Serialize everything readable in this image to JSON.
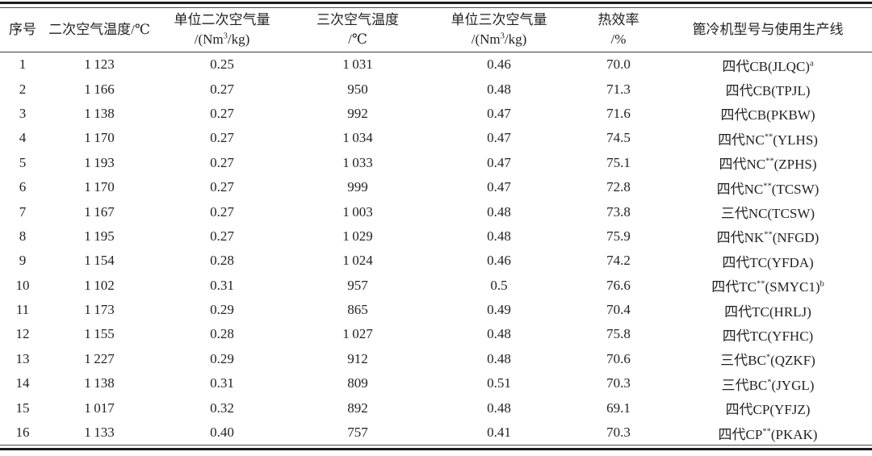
{
  "table": {
    "columns": [
      {
        "id": "index",
        "line1": "序号",
        "line2": ""
      },
      {
        "id": "secondary-air-temp",
        "line1": "二次空气温度/℃",
        "line2": ""
      },
      {
        "id": "unit-secondary-air",
        "line1": "单位二次空气量",
        "line2": "/(Nm^{3}/kg)"
      },
      {
        "id": "tertiary-air-temp",
        "line1": "三次空气温度",
        "line2": "/℃"
      },
      {
        "id": "unit-tertiary-air",
        "line1": "单位三次空气量",
        "line2": "/(Nm^{3}/kg)"
      },
      {
        "id": "thermal-efficiency",
        "line1": "热效率",
        "line2": "/%"
      },
      {
        "id": "cooler-model",
        "line1": "篦冷机型号与使用生产线",
        "line2": ""
      }
    ],
    "rows": [
      [
        "1",
        "1 123",
        "0.25",
        "1 031",
        "0.46",
        "70.0",
        "四代CB(JLQC)^{a}"
      ],
      [
        "2",
        "1 166",
        "0.27",
        "950",
        "0.48",
        "71.3",
        "四代CB(TPJL)"
      ],
      [
        "3",
        "1 138",
        "0.27",
        "992",
        "0.47",
        "71.6",
        "四代CB(PKBW)"
      ],
      [
        "4",
        "1 170",
        "0.27",
        "1 034",
        "0.47",
        "74.5",
        "四代NC^{**}(YLHS)"
      ],
      [
        "5",
        "1 193",
        "0.27",
        "1 033",
        "0.47",
        "75.1",
        "四代NC^{**}(ZPHS)"
      ],
      [
        "6",
        "1 170",
        "0.27",
        "999",
        "0.47",
        "72.8",
        "四代NC^{**}(TCSW)"
      ],
      [
        "7",
        "1 167",
        "0.27",
        "1 003",
        "0.48",
        "73.8",
        "三代NC(TCSW)"
      ],
      [
        "8",
        "1 195",
        "0.27",
        "1 029",
        "0.48",
        "75.9",
        "四代NK^{**}(NFGD)"
      ],
      [
        "9",
        "1 154",
        "0.28",
        "1 024",
        "0.46",
        "74.2",
        "四代TC(YFDA)"
      ],
      [
        "10",
        "1 102",
        "0.31",
        "957",
        "0.5",
        "76.6",
        "四代TC^{**}(SMYC1)^{b}"
      ],
      [
        "11",
        "1 173",
        "0.29",
        "865",
        "0.49",
        "70.4",
        "四代TC(HRLJ)"
      ],
      [
        "12",
        "1 155",
        "0.28",
        "1 027",
        "0.48",
        "75.8",
        "四代TC(YFHC)"
      ],
      [
        "13",
        "1 227",
        "0.29",
        "912",
        "0.48",
        "70.6",
        "三代BC^{*}(QZKF)"
      ],
      [
        "14",
        "1 138",
        "0.31",
        "809",
        "0.51",
        "70.3",
        "三代BC^{*}(JYGL)"
      ],
      [
        "15",
        "1 017",
        "0.32",
        "892",
        "0.48",
        "69.1",
        "四代CP(YFJZ)"
      ],
      [
        "16",
        "1 133",
        "0.40",
        "757",
        "0.41",
        "70.3",
        "四代CP^{**}(PKAK)"
      ]
    ]
  },
  "colors": {
    "text": "#231f20",
    "rule_thick": "#1c1c1c",
    "rule_thin": "#4a4a4a",
    "background": "#ffffff"
  }
}
